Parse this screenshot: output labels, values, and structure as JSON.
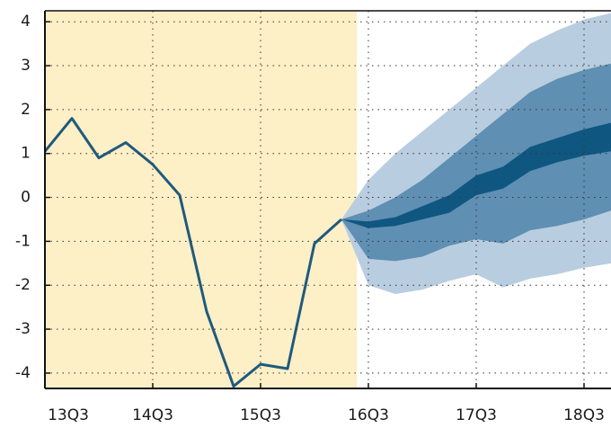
{
  "chart_data": {
    "type": "fan",
    "xlim": [
      0,
      21
    ],
    "ylim": [
      -4.35,
      4.25
    ],
    "xticks": [
      {
        "value": 0,
        "label": "13Q3"
      },
      {
        "value": 4,
        "label": "14Q3"
      },
      {
        "value": 8,
        "label": "15Q3"
      },
      {
        "value": 12,
        "label": "16Q3"
      },
      {
        "value": 16,
        "label": "17Q3"
      },
      {
        "value": 20,
        "label": "18Q3"
      }
    ],
    "yticks": [
      -4,
      -3,
      -2,
      -1,
      0,
      1,
      2,
      3,
      4
    ],
    "grid": true,
    "shade": {
      "x": [
        0,
        11.57
      ],
      "color": "#fdefc6"
    },
    "history": {
      "color": "#1f5a7e",
      "x": [
        0,
        1,
        2,
        3,
        4,
        5,
        6,
        7,
        8,
        9,
        10,
        11
      ],
      "values": [
        1.05,
        1.8,
        0.9,
        1.25,
        0.75,
        0.05,
        -2.6,
        -4.3,
        -3.8,
        -3.9,
        -1.05,
        -0.5
      ]
    },
    "band_x": [
      11,
      12,
      13,
      14,
      15,
      16,
      17,
      18,
      19,
      20,
      21
    ],
    "bands": [
      {
        "color": "#b9cde0",
        "upper": [
          -0.5,
          0.4,
          1.0,
          1.5,
          2.0,
          2.5,
          3.0,
          3.5,
          3.8,
          4.05,
          4.2
        ],
        "lower": [
          -0.5,
          -2.0,
          -2.2,
          -2.1,
          -1.9,
          -1.75,
          -2.05,
          -1.85,
          -1.75,
          -1.6,
          -1.5
        ]
      },
      {
        "color": "#5f8fb3",
        "upper": [
          -0.5,
          -0.3,
          0.0,
          0.4,
          0.9,
          1.4,
          1.9,
          2.4,
          2.7,
          2.9,
          3.05
        ],
        "lower": [
          -0.5,
          -1.4,
          -1.45,
          -1.35,
          -1.1,
          -0.95,
          -1.05,
          -0.75,
          -0.65,
          -0.5,
          -0.3
        ]
      },
      {
        "color": "#0f5780",
        "upper": [
          -0.5,
          -0.55,
          -0.45,
          -0.2,
          0.05,
          0.5,
          0.7,
          1.15,
          1.35,
          1.55,
          1.7
        ],
        "lower": [
          -0.5,
          -0.7,
          -0.65,
          -0.5,
          -0.35,
          0.05,
          0.2,
          0.6,
          0.8,
          0.95,
          1.05
        ]
      }
    ]
  }
}
